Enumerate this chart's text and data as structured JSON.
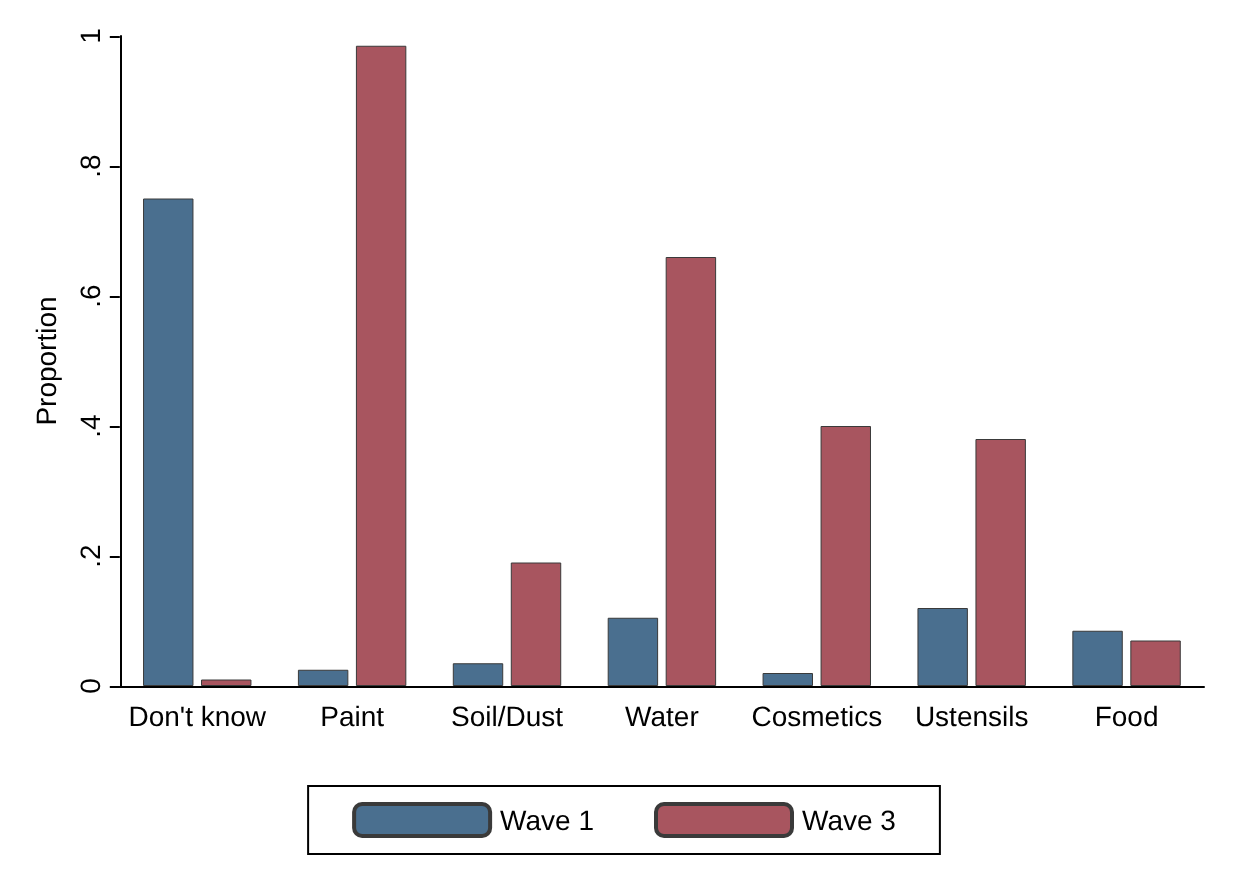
{
  "chart_data": {
    "type": "bar",
    "ylabel": "Proportion",
    "categories": [
      "Don't know",
      "Paint",
      "Soil/Dust",
      "Water",
      "Cosmetics",
      "Ustensils",
      "Food"
    ],
    "series": [
      {
        "name": "Wave 1",
        "color": "#4a6f8f",
        "values": [
          0.75,
          0.025,
          0.035,
          0.105,
          0.02,
          0.12,
          0.085
        ]
      },
      {
        "name": "Wave 3",
        "color": "#a8555f",
        "values": [
          0.01,
          0.985,
          0.19,
          0.66,
          0.4,
          0.38,
          0.07
        ]
      }
    ],
    "ylim": [
      0,
      1
    ],
    "yticks": [
      {
        "value": 0,
        "label": "0"
      },
      {
        "value": 0.2,
        "label": ".2"
      },
      {
        "value": 0.4,
        "label": ".4"
      },
      {
        "value": 0.6,
        "label": ".6"
      },
      {
        "value": 0.8,
        "label": ".8"
      },
      {
        "value": 1,
        "label": "1"
      }
    ],
    "grid": false,
    "legend": "bottom"
  }
}
